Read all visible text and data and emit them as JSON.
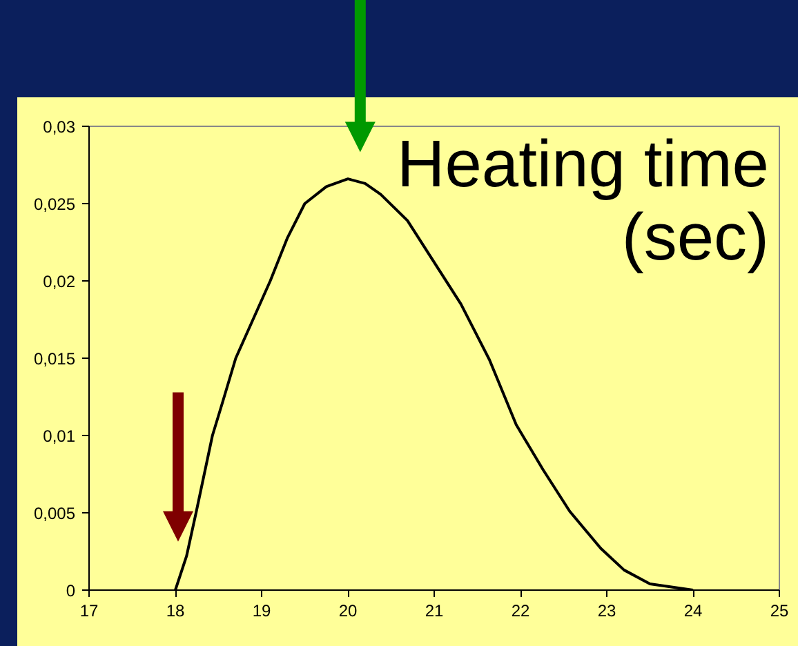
{
  "chart_data": {
    "type": "line",
    "x": [
      18,
      18.13,
      18.24,
      18.43,
      18.55,
      18.7,
      18.9,
      19.1,
      19.3,
      19.5,
      19.75,
      20.0,
      20.2,
      20.38,
      20.69,
      21.0,
      21.31,
      21.64,
      21.95,
      22.26,
      22.57,
      22.93,
      23.2,
      23.5,
      24.0
    ],
    "series": [
      {
        "color": "#000000",
        "values": [
          0,
          0.0022,
          0.005,
          0.01,
          0.0122,
          0.015,
          0.0175,
          0.02,
          0.0228,
          0.025,
          0.0261,
          0.0266,
          0.0263,
          0.0256,
          0.0239,
          0.0212,
          0.0185,
          0.0149,
          0.0107,
          0.0078,
          0.0051,
          0.0027,
          0.0013,
          0.0004,
          0
        ]
      }
    ],
    "xlim": [
      17,
      25
    ],
    "xticks": [
      17,
      18,
      19,
      20,
      21,
      22,
      23,
      24,
      25
    ],
    "ylim": [
      0,
      0.03
    ],
    "yticks": [
      0,
      {
        "value": 0.005,
        "label": "0,005"
      },
      {
        "value": 0.01,
        "label": "0,01"
      },
      {
        "value": 0.015,
        "label": "0,015"
      },
      {
        "value": 0.02,
        "label": "0,02"
      },
      {
        "value": 0.025,
        "label": "0,025"
      },
      {
        "value": 0.03,
        "label": "0,03"
      }
    ],
    "grid": false,
    "marker": "none",
    "line_style": "solid",
    "annotations": [
      "Heating time\n(sec)"
    ]
  }
}
